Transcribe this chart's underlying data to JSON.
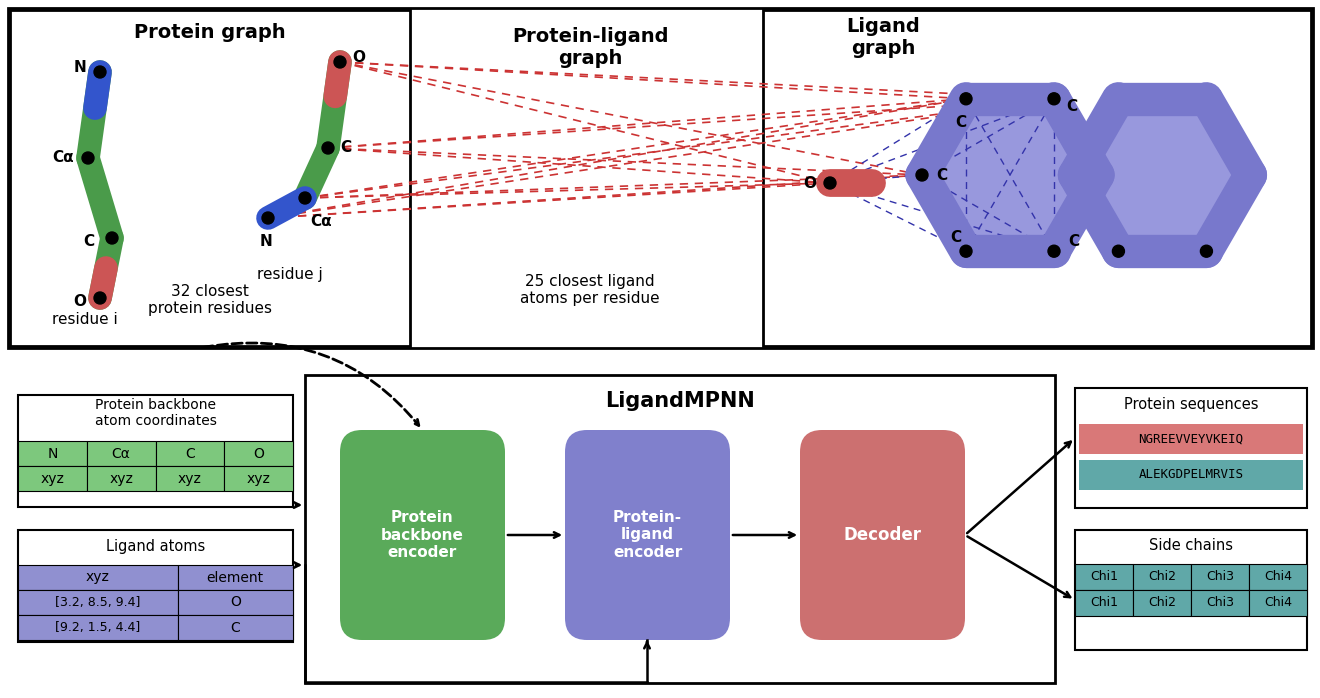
{
  "protein_graph_title": "Protein graph",
  "ligand_graph_title": "Ligand\ngraph",
  "protein_ligand_graph_title": "Protein-ligand\ngraph",
  "ligandmpnn_title": "LigandMPNN",
  "protein_sequences_title": "Protein sequences",
  "side_chains_title": "Side chains",
  "residue_i_label": "residue i",
  "residue_j_label": "residue j",
  "closest_protein_label": "32 closest\nprotein residues",
  "closest_ligand_label": "25 closest ligand\natoms per residue",
  "protein_backbone_title": "Protein backbone\natom coordinates",
  "ligand_atoms_title": "Ligand atoms",
  "green_bond_color": "#4a9b4a",
  "blue_bond_color": "#3333bb",
  "red_bond_color": "#cc4444",
  "green_cell_color": "#7dc87d",
  "blue_cell_color": "#9090d0",
  "pink_seq_color": "#d97878",
  "teal_seq_color": "#60a8a8",
  "seq1": "NGREEVVEYVKEIQ",
  "seq2": "ALEKGDPELMRVIS",
  "encoder_green": "#5aaa5a",
  "encoder_blue": "#8080cc",
  "decoder_red": "#cc7070",
  "hex_color": "#7878cc",
  "hex_fill": "#9898dd",
  "dashed_green": "#55aa22",
  "dashed_red": "#cc3333",
  "dashed_blue": "#3333aa"
}
